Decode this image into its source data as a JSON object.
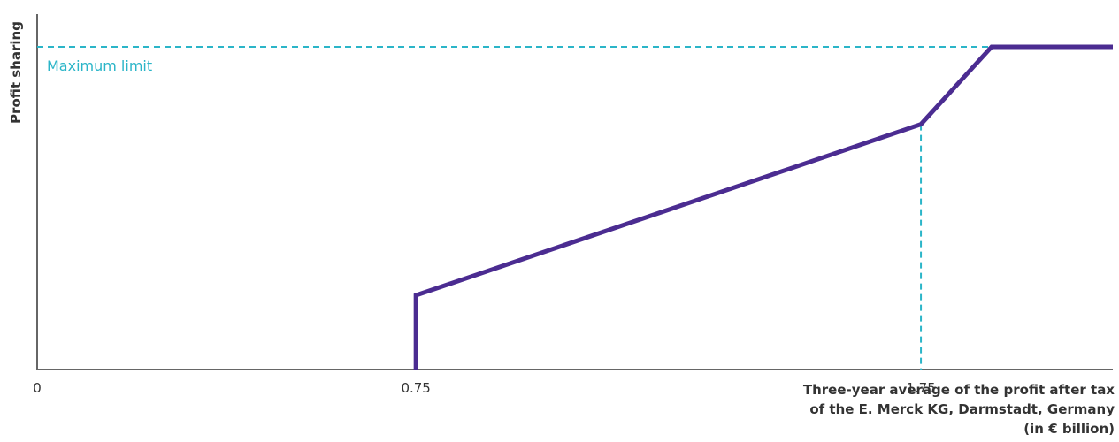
{
  "chart_data": {
    "type": "line",
    "ylabel": "Profit sharing",
    "xlabel_lines": [
      "Three-year average of the profit after tax",
      "of the E. Merck KG, Darmstadt, Germany",
      "(in € billion)"
    ],
    "x_ticks": [
      {
        "value": 0,
        "label": "0"
      },
      {
        "value": 0.75,
        "label": "0.75"
      },
      {
        "value": 1.75,
        "label": "1.75"
      }
    ],
    "xlim": [
      0,
      2.13
    ],
    "ylim": [
      0,
      1.0
    ],
    "series": [
      {
        "color": "#4b2c91",
        "points": [
          {
            "x": 0.75,
            "y": 0.0
          },
          {
            "x": 0.75,
            "y": 0.23
          },
          {
            "x": 1.75,
            "y": 0.76
          },
          {
            "x": 1.89,
            "y": 1.0
          },
          {
            "x": 2.13,
            "y": 1.0
          }
        ]
      }
    ],
    "reference_lines": [
      {
        "orientation": "horizontal",
        "y": 1.0,
        "label": "Maximum limit",
        "color": "#2bb5c8",
        "style": "dashed"
      },
      {
        "orientation": "vertical",
        "x": 1.75,
        "y_top": 0.76,
        "color": "#2bb5c8",
        "style": "dashed"
      }
    ],
    "grid": false,
    "legend": "none"
  }
}
